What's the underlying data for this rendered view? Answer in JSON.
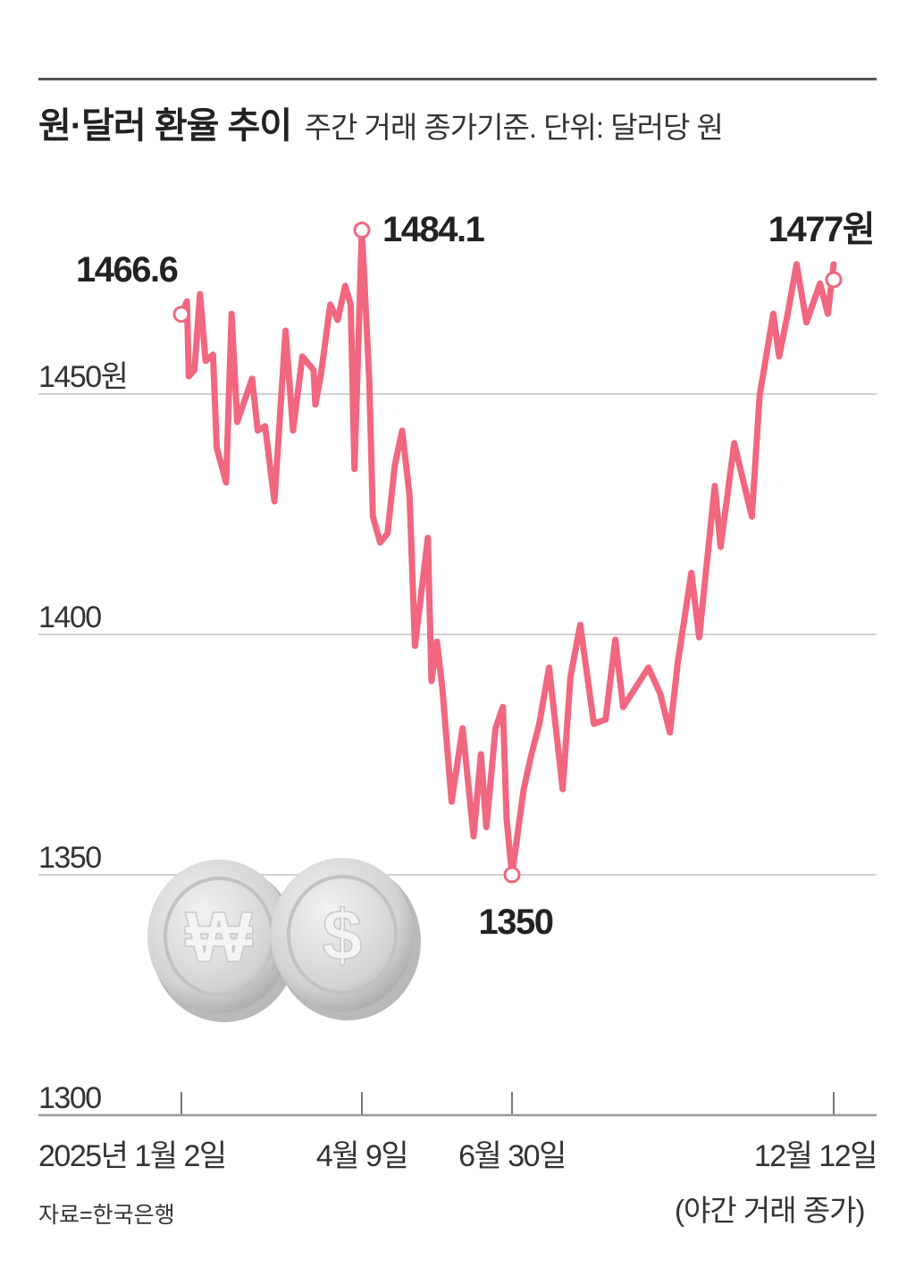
{
  "header": {
    "title": "원·달러 환율 추이",
    "subtitle": "주간 거래 종가기준. 단위: 달러당 원"
  },
  "footer": {
    "source": "자료=한국은행",
    "note": "(야간 거래 종가)"
  },
  "coins": {
    "left_symbol": "₩",
    "right_symbol": "$",
    "color": "#d6d6d6"
  },
  "chart_data": {
    "type": "line",
    "title": "원·달러 환율 추이",
    "ylabel": "",
    "xlabel": "",
    "ylim": [
      1300,
      1500
    ],
    "grid": true,
    "line_color": "#f0677f",
    "y_ticks": [
      "1300",
      "1350",
      "1400",
      "1450원"
    ],
    "y_tick_values": [
      1300,
      1350,
      1400,
      1450
    ],
    "x_ticks": [
      "2025년 1월 2일",
      "4월 9일",
      "6월 30일",
      "12월 12일"
    ],
    "x_tick_dates": [
      "2025-01-02",
      "2025-04-09",
      "2025-06-30",
      "2025-12-12"
    ],
    "annotations": [
      {
        "date": "2025-01-02",
        "value": 1466.6,
        "label": "1466.6"
      },
      {
        "date": "2025-04-09",
        "value": 1484.1,
        "label": "1484.1"
      },
      {
        "date": "2025-06-30",
        "value": 1350,
        "label": "1350"
      },
      {
        "date": "2025-12-12",
        "value": 1477,
        "label": "1477원"
      }
    ],
    "series": [
      {
        "points": [
          [
            "2025-01-02",
            1466.6
          ],
          [
            "2025-01-05",
            1469.3
          ],
          [
            "2025-01-06",
            1453.7
          ],
          [
            "2025-01-09",
            1455.0
          ],
          [
            "2025-01-12",
            1470.8
          ],
          [
            "2025-01-15",
            1456.9
          ],
          [
            "2025-01-19",
            1458.2
          ],
          [
            "2025-01-21",
            1438.8
          ],
          [
            "2025-01-26",
            1431.6
          ],
          [
            "2025-01-29",
            1466.7
          ],
          [
            "2025-02-01",
            1444.2
          ],
          [
            "2025-02-09",
            1453.2
          ],
          [
            "2025-02-12",
            1442.4
          ],
          [
            "2025-02-16",
            1443.3
          ],
          [
            "2025-02-21",
            1427.7
          ],
          [
            "2025-02-27",
            1463.2
          ],
          [
            "2025-03-03",
            1442.4
          ],
          [
            "2025-03-08",
            1457.8
          ],
          [
            "2025-03-14",
            1455.0
          ],
          [
            "2025-03-15",
            1447.8
          ],
          [
            "2025-03-18",
            1454.1
          ],
          [
            "2025-03-23",
            1468.6
          ],
          [
            "2025-03-27",
            1465.4
          ],
          [
            "2025-03-31",
            1472.5
          ],
          [
            "2025-04-03",
            1468.6
          ],
          [
            "2025-04-05",
            1434.4
          ],
          [
            "2025-04-09",
            1484.1
          ],
          [
            "2025-04-13",
            1453.2
          ],
          [
            "2025-04-15",
            1424.5
          ],
          [
            "2025-04-19",
            1419.1
          ],
          [
            "2025-04-23",
            1421.0
          ],
          [
            "2025-04-27",
            1435.3
          ],
          [
            "2025-05-01",
            1442.4
          ],
          [
            "2025-05-05",
            1429.0
          ],
          [
            "2025-05-08",
            1397.6
          ],
          [
            "2025-05-15",
            1420.1
          ],
          [
            "2025-05-17",
            1390.3
          ],
          [
            "2025-05-20",
            1398.5
          ],
          [
            "2025-05-23",
            1388.7
          ],
          [
            "2025-05-28",
            1365.2
          ],
          [
            "2025-06-03",
            1380.5
          ],
          [
            "2025-06-09",
            1358.0
          ],
          [
            "2025-06-13",
            1375.1
          ],
          [
            "2025-06-16",
            1359.9
          ],
          [
            "2025-06-21",
            1380.5
          ],
          [
            "2025-06-25",
            1384.9
          ],
          [
            "2025-06-27",
            1361.7
          ],
          [
            "2025-06-30",
            1350
          ],
          [
            "2025-07-06",
            1367.8
          ],
          [
            "2025-07-10",
            1375.1
          ],
          [
            "2025-07-14",
            1381.4
          ],
          [
            "2025-07-19",
            1393.1
          ],
          [
            "2025-07-26",
            1367.8
          ],
          [
            "2025-07-30",
            1391.3
          ],
          [
            "2025-08-04",
            1402.0
          ],
          [
            "2025-08-11",
            1381.4
          ],
          [
            "2025-08-17",
            1382.3
          ],
          [
            "2025-08-22",
            1398.9
          ],
          [
            "2025-08-26",
            1384.9
          ],
          [
            "2025-09-08",
            1393.1
          ],
          [
            "2025-09-14",
            1387.7
          ],
          [
            "2025-09-19",
            1379.6
          ],
          [
            "2025-09-23",
            1394.1
          ],
          [
            "2025-09-30",
            1412.8
          ],
          [
            "2025-10-04",
            1399.4
          ],
          [
            "2025-10-12",
            1430.9
          ],
          [
            "2025-10-15",
            1418.2
          ],
          [
            "2025-10-22",
            1439.8
          ],
          [
            "2025-10-31",
            1424.5
          ],
          [
            "2025-11-04",
            1449.6
          ],
          [
            "2025-11-07",
            1456.9
          ],
          [
            "2025-11-11",
            1466.7
          ],
          [
            "2025-11-14",
            1457.8
          ],
          [
            "2025-11-18",
            1465.8
          ],
          [
            "2025-11-23",
            1477.0
          ],
          [
            "2025-11-28",
            1464.9
          ],
          [
            "2025-12-05",
            1473.0
          ],
          [
            "2025-12-09",
            1466.7
          ],
          [
            "2025-12-12",
            1477
          ]
        ]
      }
    ]
  }
}
